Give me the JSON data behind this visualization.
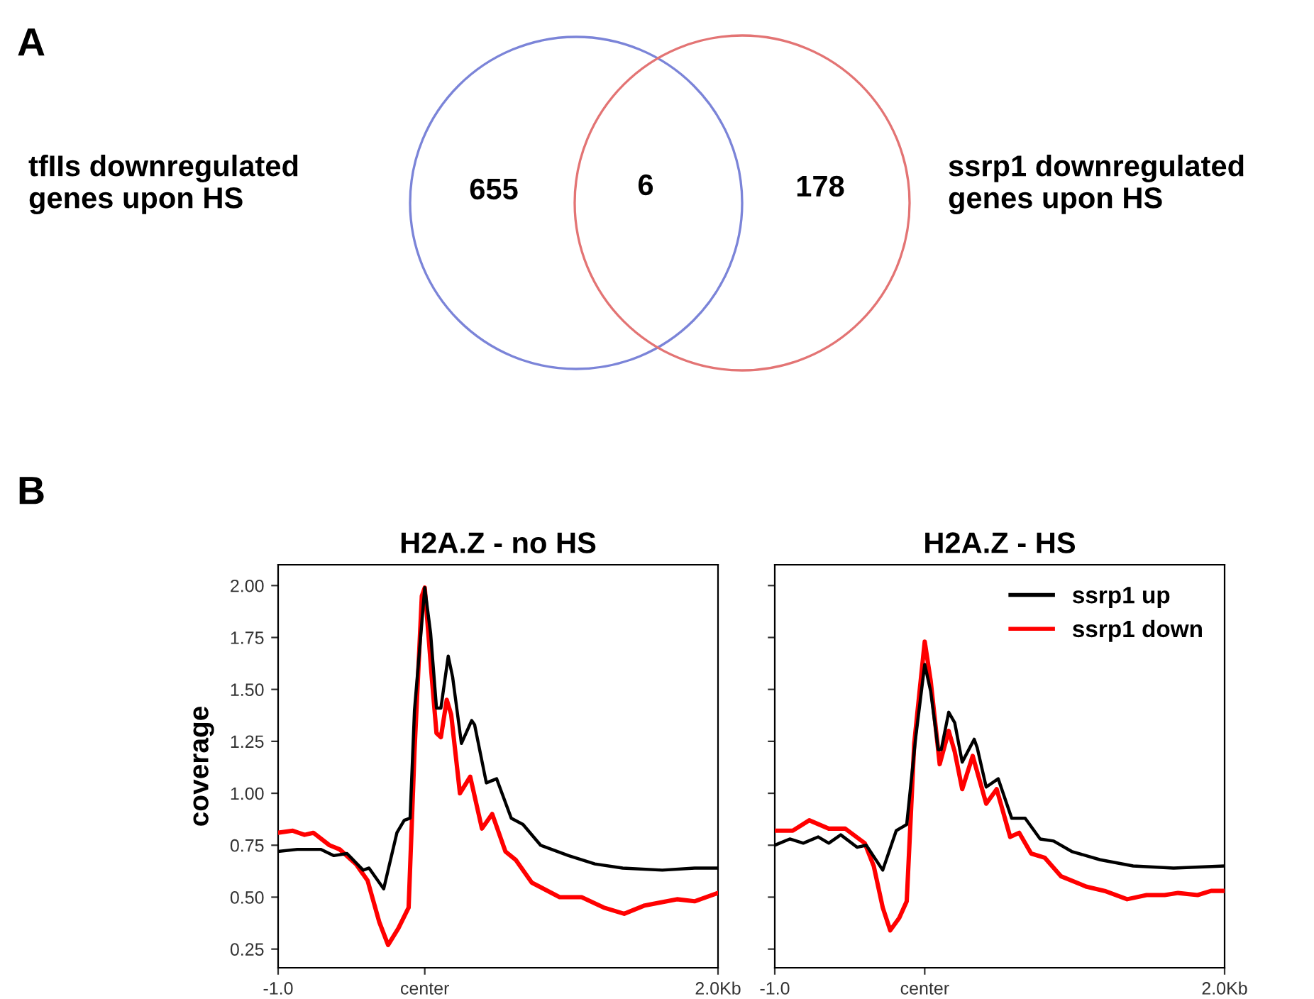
{
  "chart_data": [
    {
      "type": "other",
      "annotations": [
        "A"
      ],
      "categories": [
        "tfIIs downregulated\ngenes upon HS",
        null,
        "ssrp1 downregulated\ngenes upon HS"
      ],
      "values": [
        655,
        6,
        178
      ],
      "colors": [
        "#7b84d8",
        null,
        "#e37474"
      ],
      "data_labels": true
    },
    {
      "type": "line",
      "title": "H2A.Z - no HS",
      "ylabel": "coverage",
      "annotations": [
        "B"
      ],
      "xlim": [
        -1,
        2
      ],
      "ylim": [
        0.16,
        2.1
      ],
      "xticks": [
        {
          "value": -1,
          "label": "-1.0"
        },
        {
          "value": 0,
          "label": "center"
        },
        {
          "value": 2,
          "label": "2.0Kb"
        }
      ],
      "yticks": [
        {
          "value": 0.25,
          "label": "0.25"
        },
        {
          "value": 0.5,
          "label": "0.50"
        },
        {
          "value": 0.75,
          "label": "0.75"
        },
        {
          "value": 1,
          "label": "1.00"
        },
        {
          "value": 1.25,
          "label": "1.25"
        },
        {
          "value": 1.5,
          "label": "1.50"
        },
        {
          "value": 1.75,
          "label": "1.75"
        },
        {
          "value": 2,
          "label": "2.00"
        }
      ],
      "grid": false,
      "legend": false,
      "series": [
        {
          "color": "#000000",
          "x": [
            -1.0,
            -0.87,
            -0.71,
            -0.62,
            -0.53,
            -0.42,
            -0.38,
            -0.28,
            -0.19,
            -0.14,
            -0.1,
            -0.07,
            0.0,
            0.04,
            0.08,
            0.11,
            0.16,
            0.19,
            0.25,
            0.32,
            0.34,
            0.42,
            0.49,
            0.59,
            0.67,
            0.79,
            0.98,
            1.16,
            1.35,
            1.62,
            1.84,
            2.0
          ],
          "values": [
            0.72,
            0.73,
            0.73,
            0.7,
            0.71,
            0.63,
            0.64,
            0.54,
            0.81,
            0.87,
            0.88,
            1.4,
            1.99,
            1.77,
            1.41,
            1.41,
            1.66,
            1.56,
            1.24,
            1.35,
            1.33,
            1.05,
            1.07,
            0.88,
            0.85,
            0.75,
            0.7,
            0.66,
            0.64,
            0.63,
            0.64,
            0.64
          ]
        },
        {
          "color": "#ff0000",
          "x": [
            -1.0,
            -0.9,
            -0.82,
            -0.76,
            -0.65,
            -0.58,
            -0.47,
            -0.39,
            -0.31,
            -0.25,
            -0.18,
            -0.11,
            -0.07,
            -0.02,
            0.0,
            0.05,
            0.08,
            0.11,
            0.15,
            0.18,
            0.24,
            0.31,
            0.39,
            0.46,
            0.55,
            0.62,
            0.73,
            0.92,
            1.07,
            1.22,
            1.36,
            1.5,
            1.72,
            1.84,
            2.0
          ],
          "values": [
            0.81,
            0.82,
            0.8,
            0.81,
            0.75,
            0.73,
            0.66,
            0.58,
            0.38,
            0.27,
            0.35,
            0.45,
            1.2,
            1.95,
            1.99,
            1.54,
            1.29,
            1.27,
            1.45,
            1.38,
            1.0,
            1.08,
            0.83,
            0.9,
            0.72,
            0.68,
            0.57,
            0.5,
            0.5,
            0.45,
            0.42,
            0.46,
            0.49,
            0.48,
            0.52
          ]
        }
      ]
    },
    {
      "type": "line",
      "title": "H2A.Z - HS",
      "xlim": [
        -1,
        2
      ],
      "ylim": [
        0.16,
        2.1
      ],
      "xticks": [
        {
          "value": -1,
          "label": "-1.0"
        },
        {
          "value": 0,
          "label": "center"
        },
        {
          "value": 2,
          "label": "2.0Kb"
        }
      ],
      "yticks": [
        0.25,
        0.5,
        0.75,
        1.0,
        1.25,
        1.5,
        1.75,
        2.0
      ],
      "tick_labels": "x",
      "grid": false,
      "legend": "top right",
      "series": [
        {
          "name": "ssrp1 up",
          "color": "#000000",
          "x": [
            -1.0,
            -0.9,
            -0.81,
            -0.71,
            -0.64,
            -0.56,
            -0.45,
            -0.39,
            -0.28,
            -0.19,
            -0.12,
            -0.06,
            0.0,
            0.04,
            0.09,
            0.11,
            0.16,
            0.2,
            0.25,
            0.33,
            0.35,
            0.41,
            0.49,
            0.58,
            0.67,
            0.77,
            0.86,
            0.98,
            1.17,
            1.39,
            1.66,
            2.0
          ],
          "values": [
            0.75,
            0.78,
            0.76,
            0.79,
            0.76,
            0.8,
            0.74,
            0.75,
            0.63,
            0.82,
            0.85,
            1.27,
            1.62,
            1.49,
            1.21,
            1.21,
            1.39,
            1.34,
            1.15,
            1.26,
            1.22,
            1.03,
            1.07,
            0.88,
            0.88,
            0.78,
            0.77,
            0.72,
            0.68,
            0.65,
            0.64,
            0.65
          ]
        },
        {
          "name": "ssrp1 down",
          "color": "#ff0000",
          "x": [
            -1.0,
            -0.88,
            -0.77,
            -0.64,
            -0.53,
            -0.4,
            -0.34,
            -0.28,
            -0.23,
            -0.17,
            -0.12,
            -0.07,
            0.0,
            0.04,
            0.1,
            0.16,
            0.2,
            0.25,
            0.32,
            0.41,
            0.48,
            0.57,
            0.63,
            0.71,
            0.8,
            0.91,
            1.08,
            1.2,
            1.35,
            1.48,
            1.6,
            1.69,
            1.82,
            1.91,
            2.0
          ],
          "values": [
            0.82,
            0.82,
            0.87,
            0.83,
            0.83,
            0.76,
            0.65,
            0.45,
            0.34,
            0.4,
            0.48,
            1.24,
            1.73,
            1.54,
            1.14,
            1.3,
            1.2,
            1.02,
            1.18,
            0.95,
            1.02,
            0.79,
            0.81,
            0.71,
            0.69,
            0.6,
            0.55,
            0.53,
            0.49,
            0.51,
            0.51,
            0.52,
            0.51,
            0.53,
            0.53
          ]
        }
      ]
    }
  ]
}
